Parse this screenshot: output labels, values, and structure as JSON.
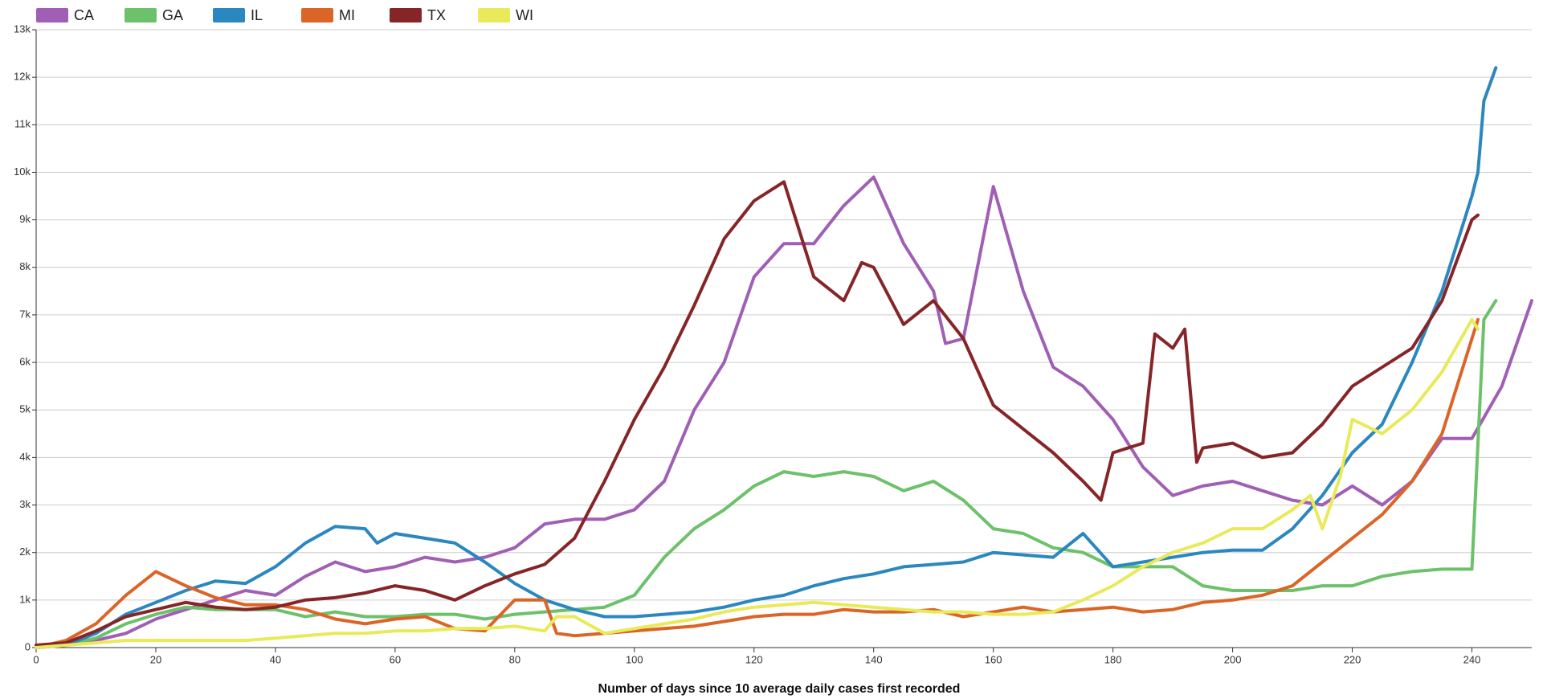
{
  "chart_data": {
    "type": "line",
    "xlabel": "Number of days since 10 average daily cases first recorded",
    "xlim": [
      0,
      250
    ],
    "xticks": [
      0,
      20,
      40,
      60,
      80,
      100,
      120,
      140,
      160,
      180,
      200,
      220,
      240
    ],
    "ylim": [
      0,
      13000
    ],
    "yticks": [
      0,
      {
        "value": 1000,
        "label": "1k"
      },
      {
        "value": 2000,
        "label": "2k"
      },
      {
        "value": 3000,
        "label": "3k"
      },
      {
        "value": 4000,
        "label": "4k"
      },
      {
        "value": 5000,
        "label": "5k"
      },
      {
        "value": 6000,
        "label": "6k"
      },
      {
        "value": 7000,
        "label": "7k"
      },
      {
        "value": 8000,
        "label": "8k"
      },
      {
        "value": 9000,
        "label": "9k"
      },
      {
        "value": 10000,
        "label": "10k"
      },
      {
        "value": 11000,
        "label": "11k"
      },
      {
        "value": 12000,
        "label": "12k"
      },
      {
        "value": 13000,
        "label": "13k"
      }
    ],
    "grid": true,
    "legend": "top-left",
    "series": [
      {
        "name": "CA",
        "color": "#a05fb4",
        "x": [
          0,
          5,
          10,
          15,
          20,
          25,
          30,
          35,
          40,
          45,
          50,
          55,
          60,
          65,
          70,
          75,
          80,
          85,
          90,
          95,
          100,
          105,
          110,
          115,
          120,
          125,
          130,
          135,
          140,
          145,
          150,
          152,
          155,
          160,
          165,
          170,
          175,
          180,
          185,
          190,
          195,
          200,
          205,
          210,
          215,
          220,
          225,
          230,
          235,
          240,
          245,
          250
        ],
        "values": [
          0,
          50,
          150,
          300,
          600,
          800,
          1000,
          1200,
          1100,
          1500,
          1800,
          1600,
          1700,
          1900,
          1800,
          1900,
          2100,
          2600,
          2700,
          2700,
          2900,
          3500,
          5000,
          6000,
          7800,
          8500,
          8500,
          9300,
          9900,
          8500,
          7500,
          6400,
          6500,
          9700,
          7500,
          5900,
          5500,
          4800,
          3800,
          3200,
          3400,
          3500,
          3300,
          3100,
          3000,
          3400,
          3000,
          3500,
          4400,
          4400,
          5500,
          7300
        ]
      },
      {
        "name": "GA",
        "color": "#6cc16a",
        "x": [
          0,
          5,
          10,
          15,
          20,
          25,
          30,
          35,
          40,
          45,
          50,
          55,
          60,
          65,
          70,
          75,
          80,
          85,
          90,
          95,
          100,
          105,
          110,
          115,
          120,
          125,
          130,
          135,
          140,
          145,
          150,
          155,
          160,
          165,
          170,
          175,
          180,
          185,
          190,
          195,
          200,
          205,
          210,
          215,
          220,
          225,
          230,
          235,
          240,
          242,
          244
        ],
        "values": [
          0,
          50,
          200,
          500,
          700,
          850,
          800,
          800,
          800,
          650,
          750,
          650,
          650,
          700,
          700,
          600,
          700,
          750,
          800,
          850,
          1100,
          1900,
          2500,
          2900,
          3400,
          3700,
          3600,
          3700,
          3600,
          3300,
          3500,
          3100,
          2500,
          2400,
          2100,
          2000,
          1700,
          1700,
          1700,
          1300,
          1200,
          1200,
          1200,
          1300,
          1300,
          1500,
          1600,
          1650,
          1650,
          6900,
          7300
        ]
      },
      {
        "name": "IL",
        "color": "#2b87c0",
        "x": [
          0,
          5,
          10,
          15,
          20,
          25,
          30,
          35,
          40,
          45,
          50,
          55,
          57,
          60,
          65,
          70,
          75,
          80,
          85,
          90,
          95,
          100,
          105,
          110,
          115,
          120,
          125,
          130,
          135,
          140,
          145,
          150,
          155,
          160,
          165,
          170,
          175,
          180,
          185,
          190,
          195,
          200,
          205,
          210,
          215,
          220,
          225,
          230,
          235,
          240,
          241,
          242,
          244
        ],
        "values": [
          0,
          50,
          300,
          700,
          950,
          1200,
          1400,
          1350,
          1700,
          2200,
          2550,
          2500,
          2200,
          2400,
          2300,
          2200,
          1800,
          1350,
          1000,
          800,
          650,
          650,
          700,
          750,
          850,
          1000,
          1100,
          1300,
          1450,
          1550,
          1700,
          1750,
          1800,
          2000,
          1950,
          1900,
          2400,
          1700,
          1800,
          1900,
          2000,
          2050,
          2050,
          2500,
          3200,
          4100,
          4700,
          6000,
          7500,
          9500,
          10000,
          11500,
          12200
        ]
      },
      {
        "name": "MI",
        "color": "#db6527",
        "x": [
          0,
          5,
          10,
          15,
          20,
          25,
          30,
          35,
          40,
          45,
          50,
          55,
          60,
          65,
          70,
          75,
          80,
          85,
          87,
          90,
          95,
          100,
          105,
          110,
          115,
          120,
          125,
          130,
          135,
          140,
          145,
          150,
          155,
          160,
          165,
          170,
          175,
          180,
          185,
          190,
          195,
          200,
          205,
          210,
          215,
          220,
          225,
          230,
          235,
          240,
          241
        ],
        "values": [
          0,
          150,
          500,
          1100,
          1600,
          1300,
          1050,
          900,
          900,
          800,
          600,
          500,
          600,
          650,
          400,
          350,
          1000,
          1000,
          300,
          250,
          300,
          350,
          400,
          450,
          550,
          650,
          700,
          700,
          800,
          750,
          750,
          800,
          650,
          750,
          850,
          750,
          800,
          850,
          750,
          800,
          950,
          1000,
          1100,
          1300,
          1800,
          2300,
          2800,
          3500,
          4500,
          6500,
          6900
        ]
      },
      {
        "name": "TX",
        "color": "#862527",
        "x": [
          0,
          5,
          10,
          15,
          20,
          25,
          30,
          35,
          40,
          45,
          50,
          55,
          60,
          65,
          70,
          75,
          80,
          85,
          90,
          95,
          100,
          105,
          110,
          115,
          120,
          125,
          130,
          135,
          138,
          140,
          145,
          150,
          155,
          160,
          165,
          170,
          175,
          178,
          180,
          185,
          187,
          190,
          192,
          194,
          195,
          200,
          205,
          210,
          215,
          220,
          225,
          230,
          235,
          240,
          241
        ],
        "values": [
          50,
          100,
          350,
          650,
          800,
          950,
          850,
          800,
          850,
          1000,
          1050,
          1150,
          1300,
          1200,
          1000,
          1300,
          1550,
          1750,
          2300,
          3500,
          4800,
          5900,
          7200,
          8600,
          9400,
          9800,
          7800,
          7300,
          8100,
          8000,
          6800,
          7300,
          6500,
          5100,
          4600,
          4100,
          3500,
          3100,
          4100,
          4300,
          6600,
          6300,
          6700,
          3900,
          4200,
          4300,
          4000,
          4100,
          4700,
          5500,
          5900,
          6300,
          7300,
          9000,
          9100
        ]
      },
      {
        "name": "WI",
        "color": "#e8ea5a",
        "x": [
          0,
          5,
          10,
          15,
          20,
          25,
          30,
          35,
          40,
          45,
          50,
          55,
          60,
          65,
          70,
          75,
          80,
          85,
          87,
          90,
          95,
          100,
          105,
          110,
          115,
          120,
          125,
          130,
          135,
          140,
          145,
          150,
          155,
          160,
          165,
          170,
          175,
          180,
          185,
          190,
          195,
          200,
          205,
          210,
          213,
          215,
          218,
          220,
          225,
          230,
          235,
          240,
          241
        ],
        "values": [
          0,
          50,
          100,
          150,
          150,
          150,
          150,
          150,
          200,
          250,
          300,
          300,
          350,
          350,
          400,
          400,
          450,
          350,
          650,
          650,
          300,
          400,
          500,
          600,
          750,
          850,
          900,
          950,
          900,
          850,
          800,
          750,
          750,
          700,
          700,
          750,
          1000,
          1300,
          1700,
          2000,
          2200,
          2500,
          2500,
          2900,
          3200,
          2500,
          3600,
          4800,
          4500,
          5000,
          5800,
          6900,
          6700
        ]
      }
    ]
  }
}
